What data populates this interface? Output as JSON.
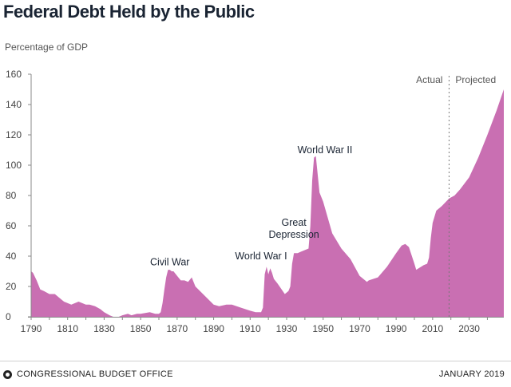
{
  "chart_data": {
    "type": "area",
    "title": "Federal Debt Held by the Public",
    "ylabel": "Percentage of GDP",
    "xlabel": "",
    "color": "#c96fb2",
    "ylim": [
      0,
      160
    ],
    "xlim": [
      1790,
      2049
    ],
    "xticks": [
      1790,
      1810,
      1830,
      1850,
      1870,
      1890,
      1910,
      1930,
      1950,
      1970,
      1990,
      2010,
      2030
    ],
    "yticks": [
      0,
      20,
      40,
      60,
      80,
      100,
      120,
      140,
      160
    ],
    "divider_year": 2019,
    "phase_labels": {
      "actual": "Actual",
      "projected": "Projected"
    },
    "annotations": [
      {
        "key": "civil",
        "lines": [
          "Civil War"
        ],
        "x": 1866,
        "y": 34
      },
      {
        "key": "ww1",
        "lines": [
          "World War I"
        ],
        "x": 1916,
        "y": 38
      },
      {
        "key": "dep",
        "lines": [
          "Great",
          "Depression"
        ],
        "x": 1934,
        "y": 52
      },
      {
        "key": "ww2",
        "lines": [
          "World War II"
        ],
        "x": 1951,
        "y": 108
      }
    ],
    "series": [
      {
        "x": [
          1790,
          1791,
          1793,
          1795,
          1797,
          1800,
          1803,
          1806,
          1808,
          1810,
          1812,
          1814,
          1816,
          1818,
          1820,
          1822,
          1825,
          1828,
          1830,
          1833,
          1835,
          1838,
          1840,
          1843,
          1845,
          1848,
          1850,
          1855,
          1858,
          1860,
          1861,
          1862,
          1863,
          1864,
          1865,
          1866,
          1867,
          1868,
          1870,
          1872,
          1874,
          1876,
          1878,
          1880,
          1885,
          1890,
          1893,
          1897,
          1900,
          1905,
          1910,
          1913,
          1916,
          1917,
          1918,
          1919,
          1920,
          1921,
          1922,
          1923,
          1925,
          1929,
          1930,
          1931,
          1932,
          1933,
          1934,
          1936,
          1938,
          1940,
          1942,
          1943,
          1944,
          1945,
          1946,
          1947,
          1948,
          1950,
          1955,
          1960,
          1965,
          1970,
          1974,
          1975,
          1980,
          1985,
          1990,
          1993,
          1995,
          1997,
          2000,
          2001,
          2005,
          2007,
          2008,
          2009,
          2010,
          2012,
          2015,
          2019,
          2022,
          2025,
          2030,
          2035,
          2040,
          2045,
          2049
        ],
        "y": [
          30,
          29,
          24,
          18,
          17,
          15,
          15,
          12,
          10,
          9,
          8,
          9,
          10,
          9,
          8,
          8,
          7,
          5,
          3,
          1,
          0,
          0,
          1,
          2,
          1,
          2,
          2,
          3,
          2,
          2,
          3,
          9,
          18,
          26,
          31,
          31,
          30,
          30,
          27,
          24,
          24,
          23,
          26,
          20,
          14,
          8,
          7,
          8,
          8,
          6,
          4,
          3,
          3,
          6,
          28,
          33,
          28,
          32,
          29,
          25,
          22,
          15,
          16,
          17,
          20,
          35,
          42,
          42,
          43,
          44,
          45,
          60,
          90,
          105,
          106,
          94,
          82,
          76,
          55,
          45,
          38,
          27,
          23,
          24,
          26,
          33,
          42,
          47,
          48,
          46,
          35,
          31,
          34,
          35,
          39,
          52,
          62,
          70,
          73,
          78,
          80,
          84,
          92,
          105,
          120,
          136,
          150
        ]
      }
    ],
    "footer": {
      "source": "CONGRESSIONAL BUDGET OFFICE",
      "date": "JANUARY 2019"
    }
  }
}
